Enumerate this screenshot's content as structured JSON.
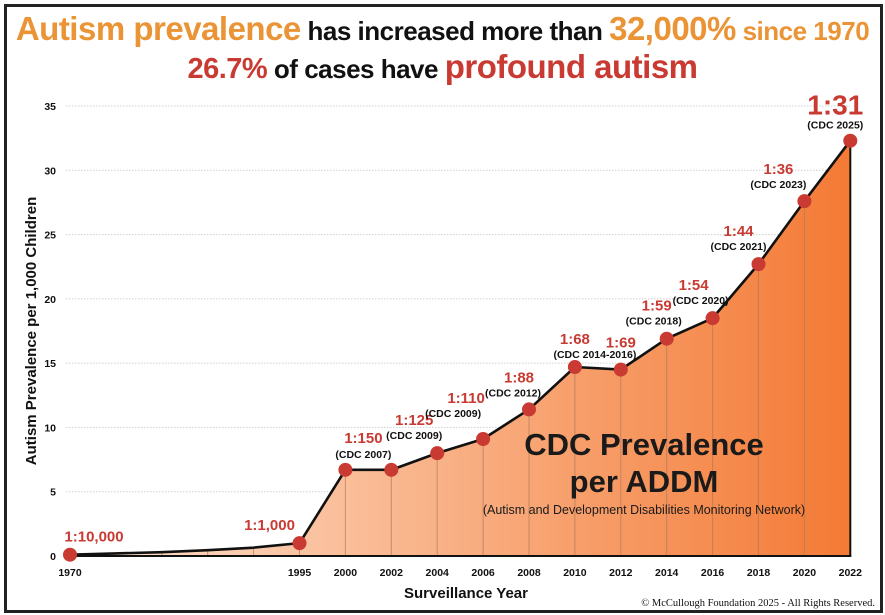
{
  "headline": {
    "line1": [
      {
        "text": "Autism prevalence",
        "style": "orange big"
      },
      {
        "text": " has increased more than ",
        "style": "black mid"
      },
      {
        "text": "32,000%",
        "style": "orange big"
      },
      {
        "text": " since 1970",
        "style": "orange mid"
      }
    ],
    "line2": [
      {
        "text": "26.7%",
        "style": "red mid2"
      },
      {
        "text": " of cases have ",
        "style": "black mid"
      },
      {
        "text": "profound autism",
        "style": "red big"
      }
    ]
  },
  "colors": {
    "accent_orange": "#ea9436",
    "accent_red": "#c83a32",
    "area_start": "#fde3d0",
    "area_end": "#f47a35",
    "line": "#111111",
    "marker": "#c83a32"
  },
  "chart_data": {
    "type": "area",
    "title": "Autism prevalence has increased more than 32,000% since 1970 — 26.7% of cases have profound autism",
    "xlabel": "Surveillance Year",
    "ylabel": "Autism Prevalence per 1,000 Children",
    "ylim": [
      0,
      35
    ],
    "yticks": [
      0,
      5,
      10,
      15,
      20,
      25,
      30,
      35
    ],
    "grid": "horizontal-dotted",
    "x_slots": [
      "1970",
      "",
      "",
      "",
      "",
      "1995",
      "2000",
      "2002",
      "2004",
      "2006",
      "2008",
      "2010",
      "2012",
      "2014",
      "2016",
      "2018",
      "2020",
      "2022"
    ],
    "curve_points": [
      {
        "slot": 0,
        "value": 0.1
      },
      {
        "slot": 1,
        "value": 0.2
      },
      {
        "slot": 2,
        "value": 0.3
      },
      {
        "slot": 3,
        "value": 0.45
      },
      {
        "slot": 4,
        "value": 0.65
      },
      {
        "slot": 5,
        "value": 1.0
      }
    ],
    "points": [
      {
        "year": "1970",
        "slot": 0,
        "value": 0.1,
        "ratio": "1:10,000",
        "source": ""
      },
      {
        "year": "1995",
        "slot": 5,
        "value": 1.0,
        "ratio": "1:1,000",
        "source": ""
      },
      {
        "year": "2000",
        "slot": 6,
        "value": 6.7,
        "ratio": "1:150",
        "source": "(CDC 2007)"
      },
      {
        "year": "2002",
        "slot": 7,
        "value": 6.7,
        "ratio": "",
        "source": ""
      },
      {
        "year": "2004",
        "slot": 8,
        "value": 8.0,
        "ratio": "1:125",
        "source": "(CDC 2009)"
      },
      {
        "year": "2006",
        "slot": 9,
        "value": 9.1,
        "ratio": "1:110",
        "source": "(CDC 2009)"
      },
      {
        "year": "2008",
        "slot": 10,
        "value": 11.4,
        "ratio": "1:88",
        "source": "(CDC 2012)"
      },
      {
        "year": "2010",
        "slot": 11,
        "value": 14.7,
        "ratio": "1:68",
        "source": "(CDC 2014-2016)"
      },
      {
        "year": "2012",
        "slot": 12,
        "value": 14.5,
        "ratio": "1:69",
        "source": ""
      },
      {
        "year": "2014",
        "slot": 13,
        "value": 16.9,
        "ratio": "1:59",
        "source": "(CDC 2018)"
      },
      {
        "year": "2016",
        "slot": 14,
        "value": 18.5,
        "ratio": "1:54",
        "source": "(CDC 2020)"
      },
      {
        "year": "2018",
        "slot": 15,
        "value": 22.7,
        "ratio": "1:44",
        "source": "(CDC 2021)"
      },
      {
        "year": "2020",
        "slot": 16,
        "value": 27.6,
        "ratio": "1:36",
        "source": "(CDC 2023)"
      },
      {
        "year": "2022",
        "slot": 17,
        "value": 32.3,
        "ratio": "1:31",
        "source": "(CDC 2025)"
      }
    ],
    "annotation": {
      "line1": "CDC Prevalence",
      "line2": "per ADDM",
      "line3": "(Autism and Development Disabilities Monitoring Network)"
    },
    "legend": "none"
  },
  "footer": {
    "copyright": "© McCullough Foundation 2025 - All Rights Reserved."
  }
}
